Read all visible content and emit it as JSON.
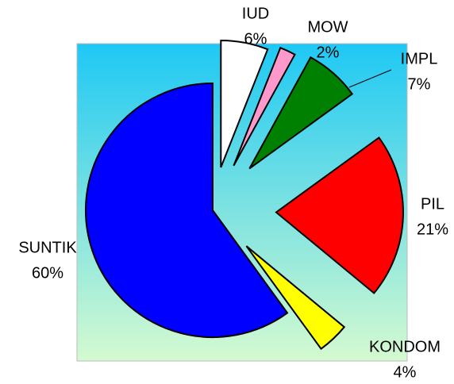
{
  "chart_data": {
    "type": "pie",
    "categories": [
      "IUD",
      "MOW",
      "IMPL",
      "PIL",
      "KONDOM",
      "SUNTIK"
    ],
    "values": [
      6,
      2,
      7,
      21,
      4,
      60
    ],
    "value_labels": [
      "6%",
      "2%",
      "7%",
      "21%",
      "4%",
      "60%"
    ],
    "colors": [
      "#ffffff",
      "#ff99cc",
      "#008000",
      "#ff0000",
      "#ffff00",
      "#0000ff"
    ]
  }
}
